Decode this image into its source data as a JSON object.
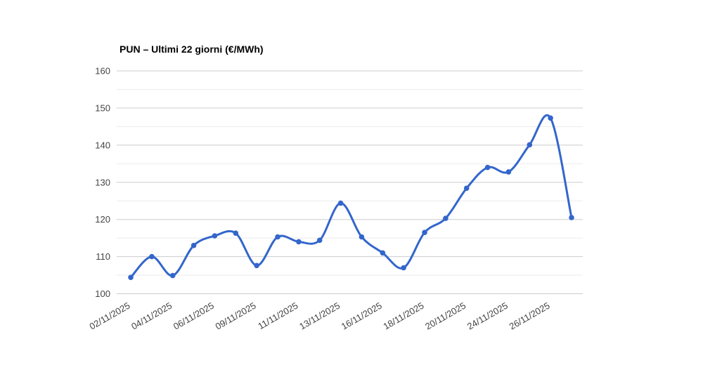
{
  "chart_data": {
    "type": "line",
    "title": "PUN – Ultimi 22 giorni (€/MWh)",
    "xlabel": "",
    "ylabel": "",
    "x_tick_labels": [
      "02/11/2025",
      "04/11/2025",
      "06/11/2025",
      "09/11/2025",
      "11/11/2025",
      "13/11/2025",
      "16/11/2025",
      "18/11/2025",
      "20/11/2025",
      "24/11/2025",
      "26/11/2025"
    ],
    "tick_every": 2,
    "values": [
      104.4,
      110.0,
      104.9,
      113.0,
      115.6,
      116.3,
      107.6,
      115.3,
      114.0,
      114.4,
      124.4,
      115.3,
      111.0,
      107.0,
      116.5,
      120.3,
      128.4,
      134.0,
      132.8,
      140.1,
      147.3,
      120.5
    ],
    "ylim": [
      100,
      160
    ],
    "y_major_step": 10,
    "y_minor_step": 5,
    "y_tick_labels": [
      "100",
      "110",
      "120",
      "130",
      "140",
      "150",
      "160"
    ],
    "grid": true,
    "legend": "none",
    "smooth": true,
    "x_label_rotation_deg": -30,
    "colors": {
      "series": "#3366CC",
      "grid_major": "#cccccc",
      "grid_minor": "#ebebeb",
      "axis_label": "#444444",
      "title": "#000000",
      "background": "#ffffff"
    }
  }
}
